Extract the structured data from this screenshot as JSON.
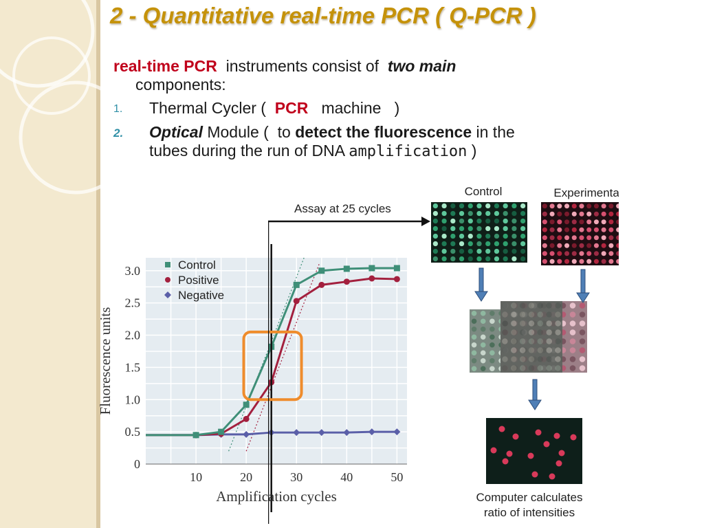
{
  "slide": {
    "title": "2 - Quantitative real-time PCR  ( Q-PCR )",
    "intro": {
      "term": "real-time PCR",
      "text": " instruments consist of ",
      "emphasis": "two main",
      "line2": "components:"
    },
    "items": [
      {
        "num": "1.",
        "pre": "Thermal Cycler (  ",
        "key": "PCR",
        "post": "   machine   )"
      },
      {
        "num": "2.",
        "key": "Optical",
        "pre": " Module (  to ",
        "bold": "detect the fluorescence",
        "post": " in the",
        "line2": "tubes during the run of DNA ",
        "mono": "amplification",
        "tail": " )"
      }
    ]
  },
  "figure": {
    "assay_label": "Assay at 25 cycles",
    "control_label": "Control",
    "experimental_label": "Experimental",
    "caption_line1": "Computer calculates",
    "caption_line2": "ratio of intensities"
  },
  "chart_data": {
    "type": "line",
    "xlabel": "Amplification cycles",
    "ylabel": "Fluorescence units",
    "xlim": [
      0,
      52
    ],
    "ylim": [
      0,
      3.2
    ],
    "x_ticks": [
      10,
      20,
      30,
      40,
      50
    ],
    "y_ticks": [
      0,
      0.5,
      1.0,
      1.5,
      2.0,
      2.5,
      3.0
    ],
    "y_tick_labels": [
      "0",
      "0.5",
      "1.0",
      "1.5",
      "2.0",
      "2.5",
      "3.0"
    ],
    "grid": true,
    "legend_position": "top-left",
    "threshold_cycle": 25,
    "series": [
      {
        "name": "Control",
        "color": "#3f8f78",
        "marker": "square",
        "x": [
          0,
          5,
          10,
          15,
          20,
          25,
          30,
          35,
          40,
          45,
          50
        ],
        "y": [
          0.45,
          0.45,
          0.45,
          0.5,
          0.92,
          1.82,
          2.78,
          3.0,
          3.03,
          3.04,
          3.04
        ]
      },
      {
        "name": "Positive",
        "color": "#a3203e",
        "marker": "circle",
        "x": [
          0,
          5,
          10,
          15,
          20,
          25,
          30,
          35,
          40,
          45,
          50
        ],
        "y": [
          0.45,
          0.45,
          0.45,
          0.47,
          0.7,
          1.27,
          2.53,
          2.78,
          2.83,
          2.88,
          2.87
        ]
      },
      {
        "name": "Negative",
        "color": "#5a5fa8",
        "marker": "diamond",
        "x": [
          0,
          5,
          10,
          15,
          20,
          25,
          30,
          35,
          40,
          45,
          50
        ],
        "y": [
          0.45,
          0.45,
          0.45,
          0.46,
          0.46,
          0.49,
          0.49,
          0.49,
          0.49,
          0.5,
          0.5
        ]
      }
    ]
  },
  "colors": {
    "title": "#c5920a",
    "accent_red": "#c0001b",
    "number": "#2f8fa6",
    "highlight_box": "#ef8c2c",
    "plot_bg": "#e5ecf1",
    "arrow_blue": "#4f7fb6"
  }
}
